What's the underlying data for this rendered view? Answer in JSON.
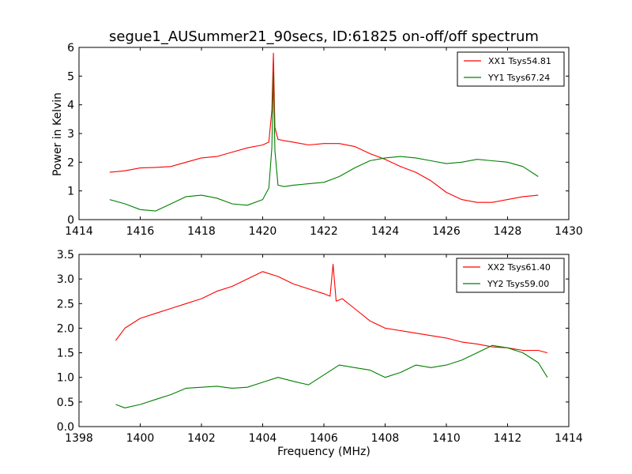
{
  "chart_data": [
    {
      "type": "line",
      "title": "segue1_AUSummer21_90secs, ID:61825 on-off/off spectrum",
      "xlabel": "",
      "ylabel": "Power in Kelvin",
      "xlim": [
        1414,
        1430
      ],
      "ylim": [
        0,
        6
      ],
      "xticks": [
        "1414",
        "1416",
        "1418",
        "1420",
        "1422",
        "1424",
        "1426",
        "1428",
        "1430"
      ],
      "yticks": [
        "0",
        "1",
        "2",
        "3",
        "4",
        "5",
        "6"
      ],
      "grid": false,
      "legend_position": "top-right",
      "series": [
        {
          "name": "XX1 Tsys54.81",
          "color": "#ff0000",
          "x": [
            1415.0,
            1415.5,
            1416.0,
            1416.5,
            1417.0,
            1417.5,
            1418.0,
            1418.5,
            1419.0,
            1419.5,
            1420.0,
            1420.2,
            1420.3,
            1420.35,
            1420.4,
            1420.5,
            1420.7,
            1421.0,
            1421.5,
            1422.0,
            1422.5,
            1423.0,
            1423.5,
            1424.0,
            1424.5,
            1425.0,
            1425.5,
            1426.0,
            1426.5,
            1427.0,
            1427.5,
            1428.0,
            1428.5,
            1429.0
          ],
          "values": [
            1.65,
            1.7,
            1.8,
            1.82,
            1.85,
            2.0,
            2.15,
            2.2,
            2.35,
            2.5,
            2.6,
            2.7,
            3.8,
            5.8,
            3.2,
            2.8,
            2.75,
            2.7,
            2.6,
            2.65,
            2.65,
            2.55,
            2.3,
            2.1,
            1.85,
            1.65,
            1.35,
            0.95,
            0.7,
            0.6,
            0.6,
            0.7,
            0.8,
            0.85
          ]
        },
        {
          "name": "YY1 Tsys67.24",
          "color": "#008000",
          "x": [
            1415.0,
            1415.5,
            1416.0,
            1416.5,
            1417.0,
            1417.5,
            1418.0,
            1418.5,
            1419.0,
            1419.5,
            1420.0,
            1420.2,
            1420.3,
            1420.35,
            1420.4,
            1420.5,
            1420.7,
            1421.0,
            1421.5,
            1422.0,
            1422.5,
            1423.0,
            1423.5,
            1424.0,
            1424.5,
            1425.0,
            1425.5,
            1426.0,
            1426.5,
            1427.0,
            1427.5,
            1428.0,
            1428.5,
            1429.0
          ],
          "values": [
            0.7,
            0.55,
            0.35,
            0.3,
            0.55,
            0.8,
            0.85,
            0.75,
            0.55,
            0.5,
            0.7,
            1.1,
            2.5,
            5.1,
            2.4,
            1.2,
            1.15,
            1.2,
            1.25,
            1.3,
            1.5,
            1.8,
            2.05,
            2.15,
            2.2,
            2.15,
            2.05,
            1.95,
            2.0,
            2.1,
            2.05,
            2.0,
            1.85,
            1.5
          ]
        }
      ]
    },
    {
      "type": "line",
      "title": "",
      "xlabel": "Frequency (MHz)",
      "ylabel": "",
      "xlim": [
        1398,
        1414
      ],
      "ylim": [
        0.0,
        3.5
      ],
      "xticks": [
        "1398",
        "1400",
        "1402",
        "1404",
        "1406",
        "1408",
        "1410",
        "1412",
        "1414"
      ],
      "yticks": [
        "0.0",
        "0.5",
        "1.0",
        "1.5",
        "2.0",
        "2.5",
        "3.0",
        "3.5"
      ],
      "grid": false,
      "legend_position": "top-right",
      "series": [
        {
          "name": "XX2 Tsys61.40",
          "color": "#ff0000",
          "x": [
            1399.2,
            1399.5,
            1400.0,
            1400.5,
            1401.0,
            1401.5,
            1402.0,
            1402.5,
            1403.0,
            1403.5,
            1404.0,
            1404.5,
            1405.0,
            1405.5,
            1406.0,
            1406.2,
            1406.3,
            1406.4,
            1406.6,
            1407.0,
            1407.5,
            1408.0,
            1408.5,
            1409.0,
            1409.5,
            1410.0,
            1410.5,
            1411.0,
            1411.5,
            1412.0,
            1412.5,
            1413.0,
            1413.3
          ],
          "values": [
            1.75,
            2.0,
            2.2,
            2.3,
            2.4,
            2.5,
            2.6,
            2.75,
            2.85,
            3.0,
            3.15,
            3.05,
            2.9,
            2.8,
            2.7,
            2.65,
            3.3,
            2.55,
            2.6,
            2.4,
            2.15,
            2.0,
            1.95,
            1.9,
            1.85,
            1.8,
            1.72,
            1.68,
            1.62,
            1.6,
            1.55,
            1.55,
            1.5
          ]
        },
        {
          "name": "YY2 Tsys59.00",
          "color": "#008000",
          "x": [
            1399.2,
            1399.5,
            1400.0,
            1400.5,
            1401.0,
            1401.5,
            1402.0,
            1402.5,
            1403.0,
            1403.5,
            1404.0,
            1404.5,
            1405.0,
            1405.5,
            1406.0,
            1406.5,
            1407.0,
            1407.5,
            1408.0,
            1408.5,
            1409.0,
            1409.5,
            1410.0,
            1410.5,
            1411.0,
            1411.5,
            1412.0,
            1412.5,
            1413.0,
            1413.3
          ],
          "values": [
            0.45,
            0.38,
            0.45,
            0.55,
            0.65,
            0.78,
            0.8,
            0.82,
            0.78,
            0.8,
            0.9,
            1.0,
            0.92,
            0.85,
            1.05,
            1.25,
            1.2,
            1.15,
            1.0,
            1.1,
            1.25,
            1.2,
            1.25,
            1.35,
            1.5,
            1.65,
            1.6,
            1.5,
            1.3,
            1.0
          ]
        }
      ]
    }
  ]
}
